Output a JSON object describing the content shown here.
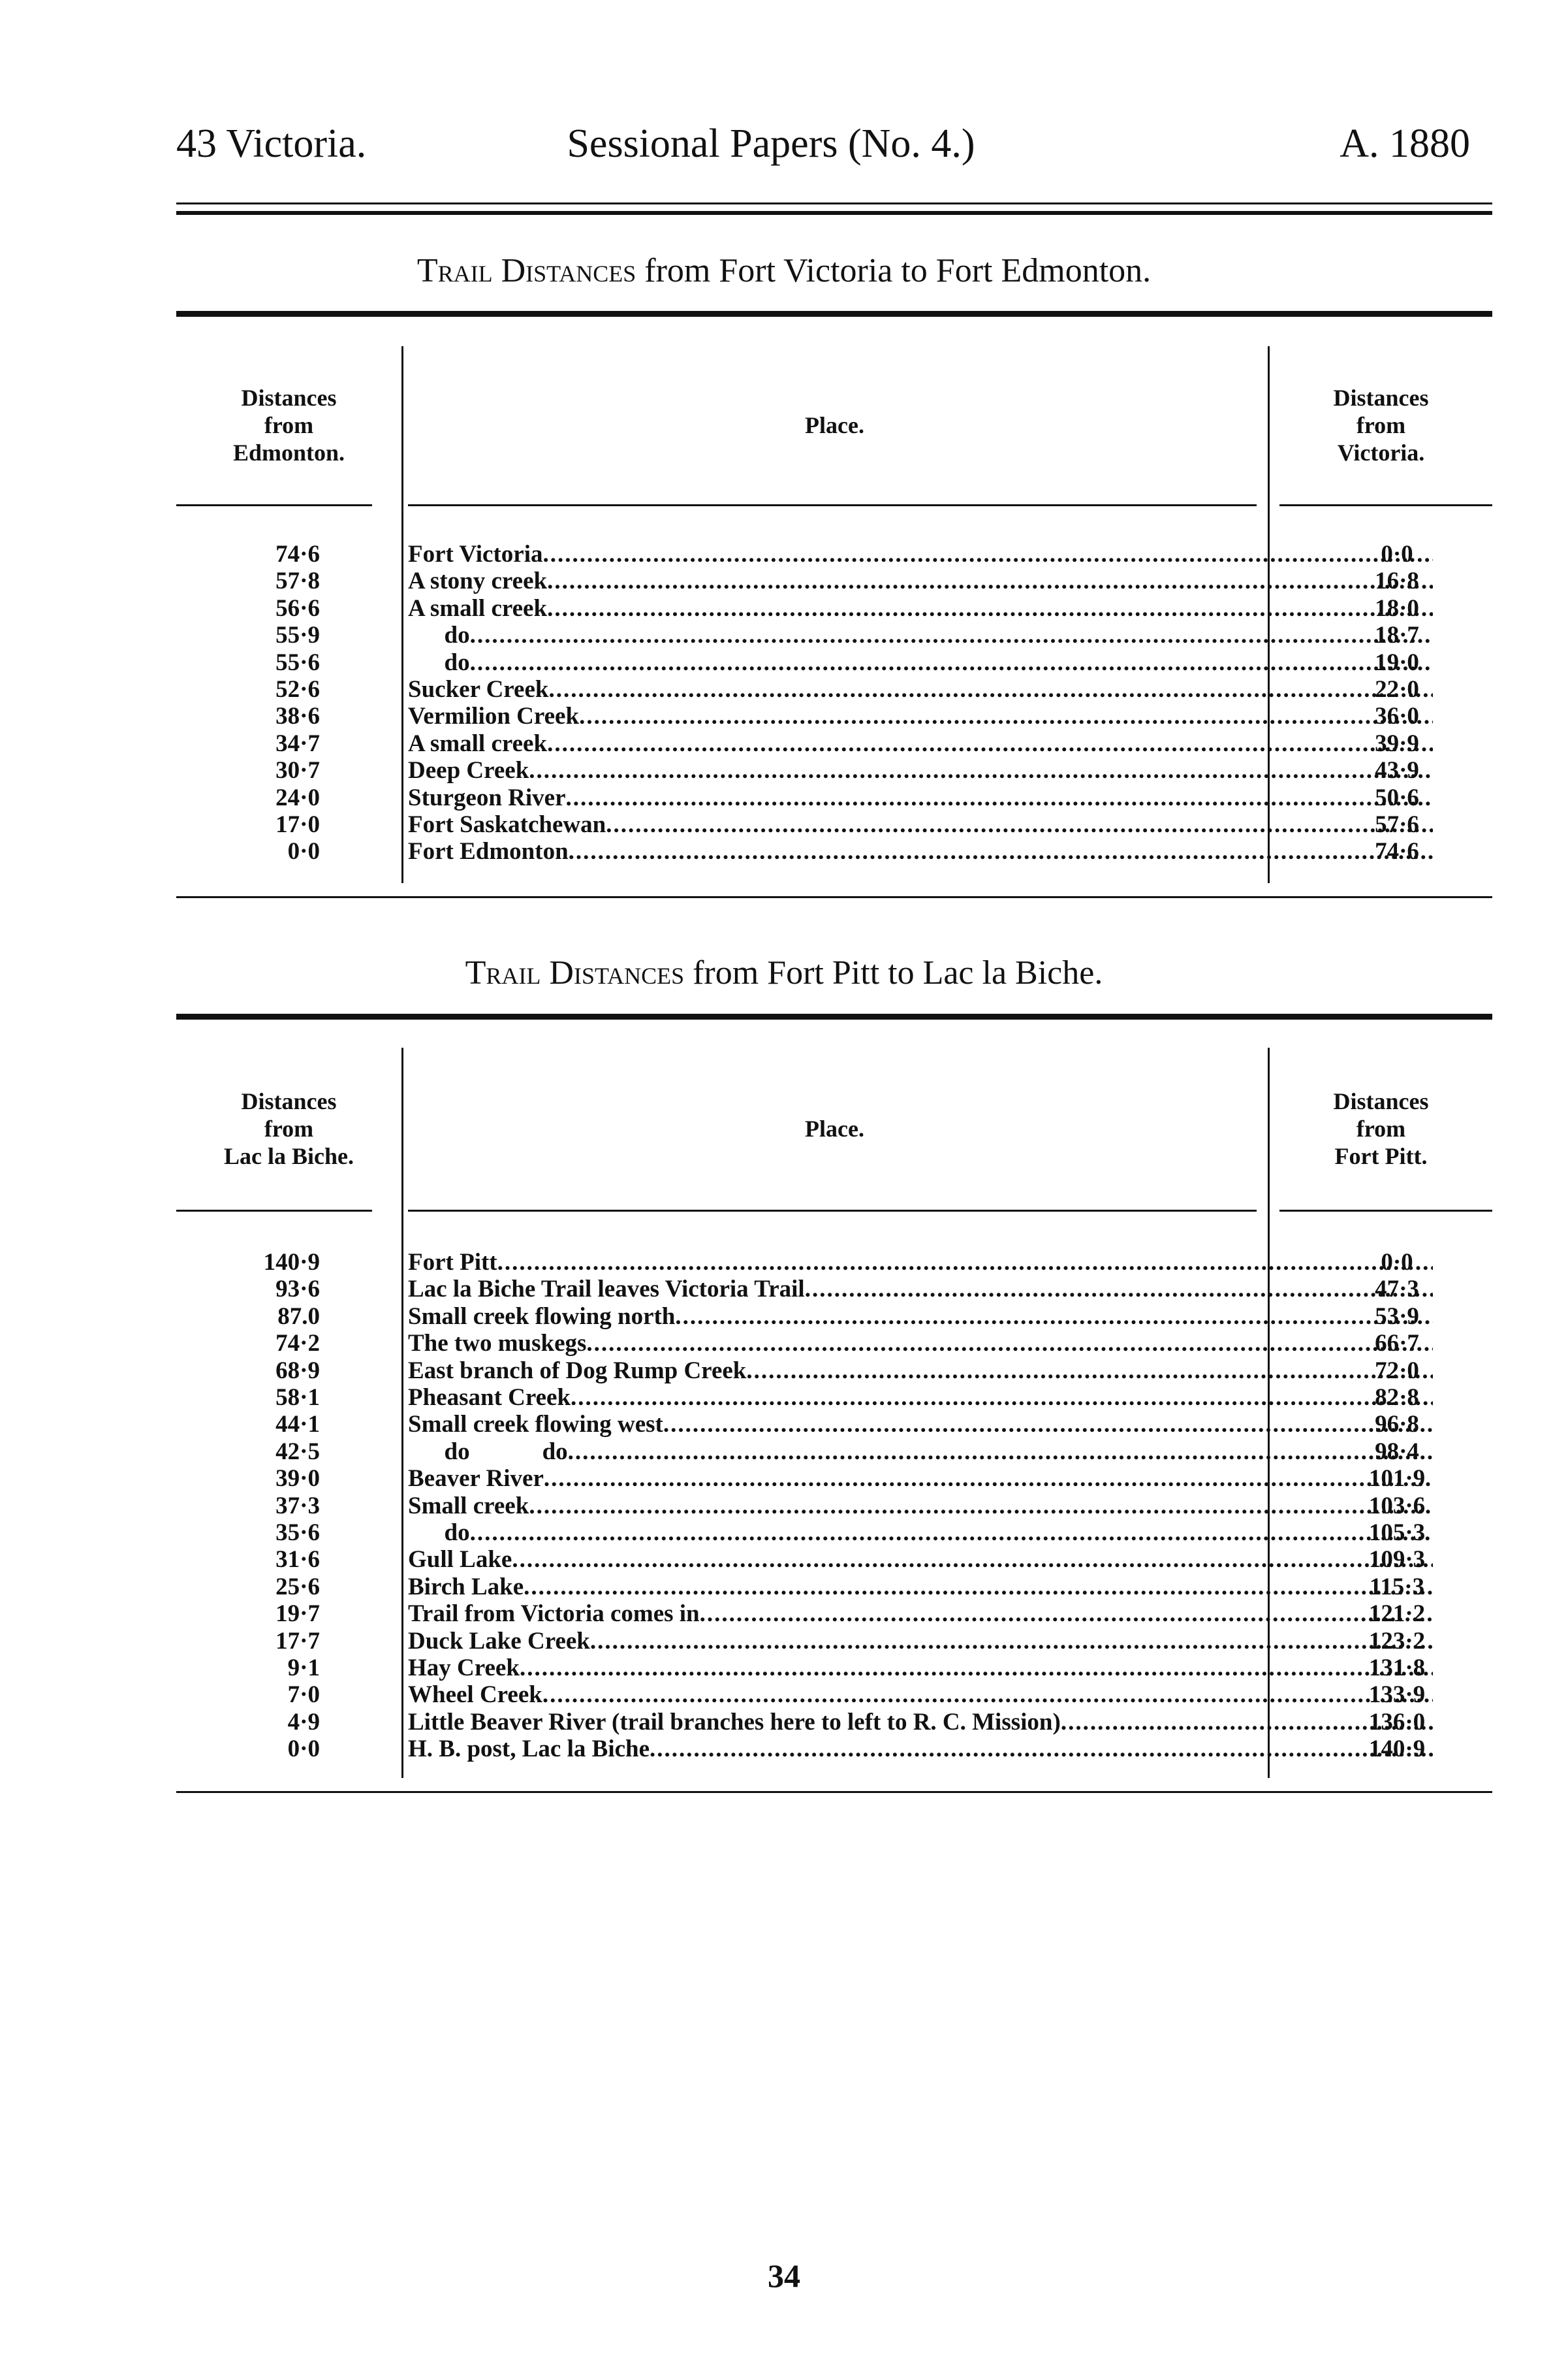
{
  "header": {
    "left": "43 Victoria.",
    "center": "Sessional Papers (No. 4.)",
    "right": "A. 1880"
  },
  "tables": [
    {
      "title_sc": "Trail Distances",
      "title_rest": " from Fort Victoria to Fort Edmonton.",
      "col1": [
        "Distances",
        "from",
        "Edmonton."
      ],
      "col2": "Place.",
      "col3": [
        "Distances",
        "from",
        "Victoria."
      ],
      "rows": [
        {
          "a": "74·6",
          "place": "Fort Victoria",
          "b": "0·0"
        },
        {
          "a": "57·8",
          "place": "A stony creek",
          "b": "16·8"
        },
        {
          "a": "56·6",
          "place": "A small creek",
          "b": "18·0"
        },
        {
          "a": "55·9",
          "place": "      do",
          "b": "18·7"
        },
        {
          "a": "55·6",
          "place": "      do",
          "b": "19·0"
        },
        {
          "a": "52·6",
          "place": "Sucker Creek",
          "b": "22·0"
        },
        {
          "a": "38·6",
          "place": "Vermilion Creek",
          "b": "36·0"
        },
        {
          "a": "34·7",
          "place": "A small creek",
          "b": "39·9"
        },
        {
          "a": "30·7",
          "place": "Deep Creek",
          "b": "43·9"
        },
        {
          "a": "24·0",
          "place": "Sturgeon River",
          "b": "50·6"
        },
        {
          "a": "17·0",
          "place": "Fort Saskatchewan",
          "b": "57·6"
        },
        {
          "a": "0·0",
          "place": "Fort Edmonton",
          "b": "74·6"
        }
      ]
    },
    {
      "title_sc": "Trail Distances",
      "title_rest": " from Fort Pitt to Lac la Biche.",
      "col1": [
        "Distances",
        "from",
        "Lac la Biche."
      ],
      "col2": "Place.",
      "col3": [
        "Distances",
        "from",
        "Fort Pitt."
      ],
      "rows": [
        {
          "a": "140·9",
          "place": "Fort Pitt",
          "b": "0·0"
        },
        {
          "a": "93·6",
          "place": "Lac la Biche Trail leaves Victoria Trail",
          "b": "47·3"
        },
        {
          "a": "87.0",
          "place": "Small creek flowing north",
          "b": "53·9"
        },
        {
          "a": "74·2",
          "place": "The two muskegs",
          "b": "66·7"
        },
        {
          "a": "68·9",
          "place": "East branch of Dog Rump Creek",
          "b": "72·0"
        },
        {
          "a": "58·1",
          "place": "Pheasant Creek",
          "b": "82·8"
        },
        {
          "a": "44·1",
          "place": "Small creek flowing west",
          "b": "96·8"
        },
        {
          "a": "42·5",
          "place": "      do            do",
          "b": "98·4"
        },
        {
          "a": "39·0",
          "place": "Beaver River",
          "b": "101·9"
        },
        {
          "a": "37·3",
          "place": "Small creek",
          "b": "103·6"
        },
        {
          "a": "35·6",
          "place": "      do",
          "b": "105·3"
        },
        {
          "a": "31·6",
          "place": "Gull Lake",
          "b": "109·3"
        },
        {
          "a": "25·6",
          "place": "Birch Lake",
          "b": "115·3"
        },
        {
          "a": "19·7",
          "place": "Trail from Victoria comes in",
          "b": "121·2"
        },
        {
          "a": "17·7",
          "place": "Duck Lake Creek",
          "b": "123·2"
        },
        {
          "a": "9·1",
          "place": "Hay Creek",
          "b": "131·8"
        },
        {
          "a": "7·0",
          "place": "Wheel Creek",
          "b": "133·9"
        },
        {
          "a": "4·9",
          "place": "Little Beaver River (trail branches here to left to R. C. Mission)",
          "b": "136·0"
        },
        {
          "a": "0·0",
          "place": "H. B. post, Lac la Biche",
          "b": "140·9"
        }
      ]
    }
  ],
  "page_number": "34"
}
